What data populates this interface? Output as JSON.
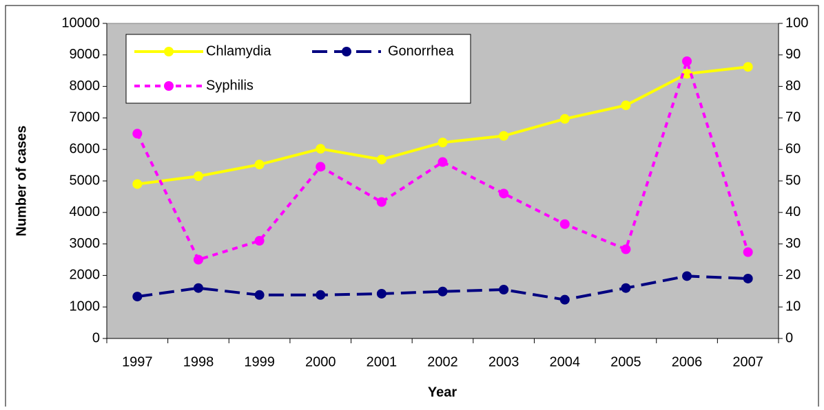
{
  "chart_data": {
    "type": "line",
    "x_label": "Year",
    "y_label": "Number of cases",
    "categories": [
      "1997",
      "1998",
      "1999",
      "2000",
      "2001",
      "2002",
      "2003",
      "2004",
      "2005",
      "2006",
      "2007"
    ],
    "series": [
      {
        "name": "Chlamydia",
        "color": "#ffff00",
        "dash": "solid",
        "values": [
          4900,
          5150,
          5520,
          6020,
          5680,
          6220,
          6430,
          6970,
          7400,
          8400,
          8620
        ]
      },
      {
        "name": "Gonorrhea",
        "color": "#000080",
        "dash": "long",
        "values": [
          1330,
          1600,
          1380,
          1380,
          1420,
          1490,
          1550,
          1230,
          1600,
          1980,
          1900
        ]
      },
      {
        "name": "Syphilis",
        "color": "#ff00ff",
        "dash": "short",
        "axis": "y2",
        "values": [
          65,
          25,
          31,
          54.5,
          43.3,
          56,
          46,
          36.3,
          28.3,
          88,
          27.4
        ]
      }
    ],
    "ylim": [
      0,
      10000
    ],
    "yticks": [
      0,
      1000,
      2000,
      3000,
      4000,
      5000,
      6000,
      7000,
      8000,
      9000,
      10000
    ],
    "y2lim": [
      0,
      100
    ],
    "y2ticks": [
      0,
      10,
      20,
      30,
      40,
      50,
      60,
      70,
      80,
      90,
      100
    ],
    "plot_background": "#c0c0c0",
    "legend": "top-left"
  }
}
